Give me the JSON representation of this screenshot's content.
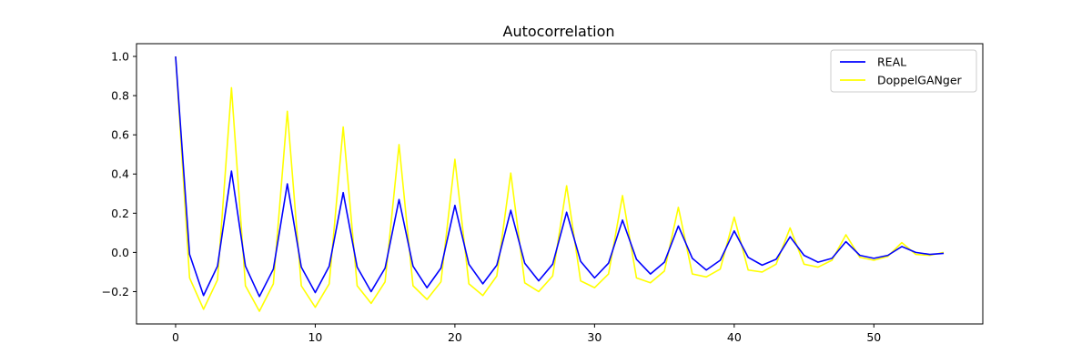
{
  "chart_data": {
    "type": "line",
    "title": "Autocorrelation",
    "xlabel": "",
    "ylabel": "",
    "xlim": [
      -2.8,
      57.8
    ],
    "ylim": [
      -0.365,
      1.065
    ],
    "xticks": [
      0,
      10,
      20,
      30,
      40,
      50
    ],
    "xtick_labels": [
      "0",
      "10",
      "20",
      "30",
      "40",
      "50"
    ],
    "yticks": [
      -0.2,
      0.0,
      0.2,
      0.4,
      0.6,
      0.8,
      1.0
    ],
    "ytick_labels": [
      "−0.2",
      "0.0",
      "0.2",
      "0.4",
      "0.6",
      "0.8",
      "1.0"
    ],
    "grid": false,
    "legend_position": "top-right",
    "x": [
      0,
      1,
      2,
      3,
      4,
      5,
      6,
      7,
      8,
      9,
      10,
      11,
      12,
      13,
      14,
      15,
      16,
      17,
      18,
      19,
      20,
      21,
      22,
      23,
      24,
      25,
      26,
      27,
      28,
      29,
      30,
      31,
      32,
      33,
      34,
      35,
      36,
      37,
      38,
      39,
      40,
      41,
      42,
      43,
      44,
      45,
      46,
      47,
      48,
      49,
      50,
      51,
      52,
      53,
      54,
      55
    ],
    "series": [
      {
        "name": "REAL",
        "color": "#0000ff",
        "values": [
          1.0,
          -0.01,
          -0.22,
          -0.07,
          0.415,
          -0.07,
          -0.225,
          -0.085,
          0.35,
          -0.075,
          -0.205,
          -0.07,
          0.305,
          -0.075,
          -0.2,
          -0.08,
          0.27,
          -0.07,
          -0.18,
          -0.08,
          0.24,
          -0.06,
          -0.16,
          -0.065,
          0.215,
          -0.055,
          -0.145,
          -0.06,
          0.205,
          -0.045,
          -0.13,
          -0.055,
          0.165,
          -0.035,
          -0.11,
          -0.05,
          0.135,
          -0.03,
          -0.09,
          -0.04,
          0.11,
          -0.025,
          -0.065,
          -0.035,
          0.08,
          -0.015,
          -0.05,
          -0.03,
          0.055,
          -0.015,
          -0.03,
          -0.015,
          0.03,
          0.0,
          -0.01,
          -0.005
        ]
      },
      {
        "name": "DoppelGANger",
        "color": "#ffff00",
        "values": [
          1.0,
          -0.13,
          -0.29,
          -0.14,
          0.84,
          -0.17,
          -0.3,
          -0.16,
          0.72,
          -0.17,
          -0.28,
          -0.16,
          0.64,
          -0.17,
          -0.26,
          -0.15,
          0.55,
          -0.17,
          -0.24,
          -0.15,
          0.475,
          -0.16,
          -0.22,
          -0.12,
          0.405,
          -0.155,
          -0.2,
          -0.12,
          0.34,
          -0.145,
          -0.18,
          -0.11,
          0.29,
          -0.13,
          -0.155,
          -0.095,
          0.23,
          -0.11,
          -0.125,
          -0.085,
          0.18,
          -0.09,
          -0.1,
          -0.06,
          0.125,
          -0.06,
          -0.075,
          -0.04,
          0.09,
          -0.025,
          -0.04,
          -0.02,
          0.05,
          -0.01,
          -0.015,
          0.0
        ]
      }
    ]
  }
}
